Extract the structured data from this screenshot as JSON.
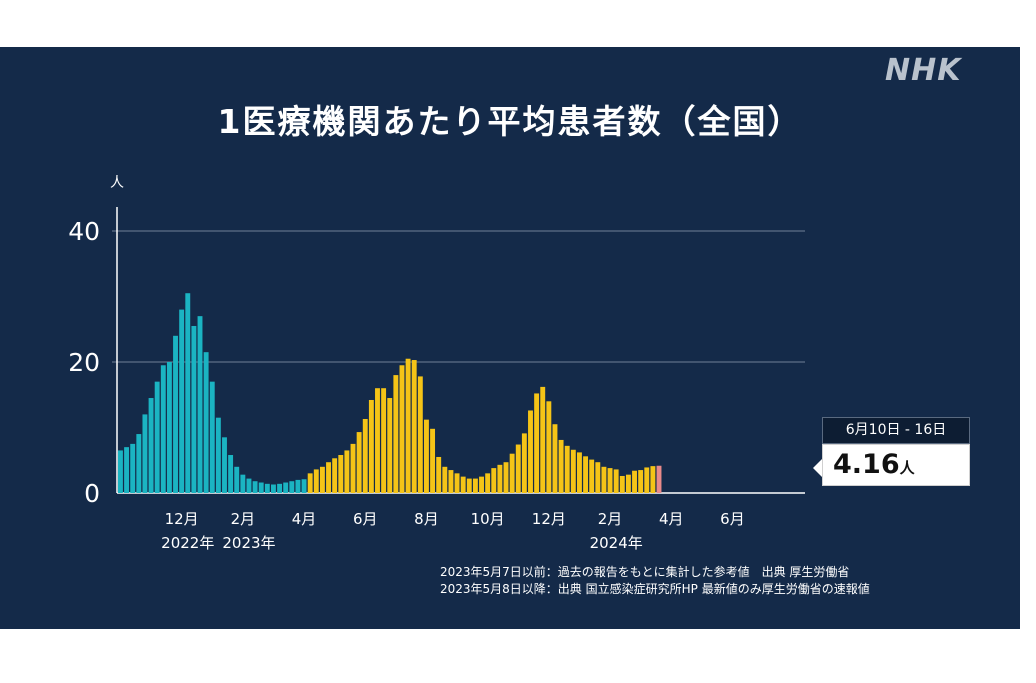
{
  "logo": "NHK",
  "colors": {
    "background": "#142a49",
    "before_2023_05_08": "#1bb4c2",
    "after_2023_05_08": "#f5c417",
    "latest": "#e98a8a",
    "grid": "#5d6f87"
  },
  "chart_data": {
    "type": "bar",
    "title": "1医療機関あたり平均患者数（全国）",
    "ylabel": "人",
    "ylim": [
      0,
      42
    ],
    "yticks": [
      0,
      20,
      40
    ],
    "grid": true,
    "series": [
      {
        "role": "before_2023_05_08",
        "values": [
          6.5,
          7,
          7.5,
          9,
          12,
          14.5,
          17,
          19.5,
          20,
          24,
          28,
          30.5,
          25.5,
          27,
          21.5,
          17,
          11.5,
          8.5,
          5.8,
          4,
          2.8,
          2.2,
          1.8,
          1.6,
          1.4,
          1.3,
          1.4,
          1.6,
          1.8,
          2.0,
          2.1
        ]
      },
      {
        "role": "after_2023_05_08",
        "values": [
          3,
          3.6,
          4,
          4.7,
          5.3,
          5.8,
          6.5,
          7.5,
          9.3,
          11.3,
          14.2,
          16,
          16,
          14.5,
          18,
          19.5,
          20.5,
          20.3,
          17.8,
          11.2,
          9.8,
          5.5,
          4,
          3.5,
          3,
          2.5,
          2.2,
          2.2,
          2.5,
          3,
          3.8,
          4.3,
          4.7,
          6,
          7.4,
          9.1,
          12.6,
          15.2,
          16.2,
          14,
          10.5,
          8.1,
          7.2,
          6.6,
          6.2,
          5.6,
          5.1,
          4.7,
          4,
          3.8,
          3.6,
          2.6,
          2.8,
          3.4,
          3.5,
          3.9,
          4.1
        ]
      },
      {
        "role": "latest",
        "values": [
          4.16
        ]
      }
    ],
    "x_ticks": [
      {
        "label": "12月",
        "index": 10
      },
      {
        "label": "2月",
        "index": 20
      },
      {
        "label": "4月",
        "index": 30
      },
      {
        "label": "6月",
        "index": 40
      },
      {
        "label": "8月",
        "index": 50
      },
      {
        "label": "10月",
        "index": 60
      },
      {
        "label": "12月",
        "index": 70
      },
      {
        "label": "2月",
        "index": 80
      },
      {
        "label": "4月",
        "index": 90
      },
      {
        "label": "6月",
        "index": 100
      }
    ],
    "year_labels": [
      {
        "label": "2022年",
        "index": 11
      },
      {
        "label": "2023年",
        "index": 21
      },
      {
        "label": "2024年",
        "index": 81
      }
    ],
    "callout": {
      "period": "6月10日 - 16日",
      "value": "4.16",
      "unit": "人"
    },
    "notes": [
      "2023年5月7日以前：過去の報告をもとに集計した参考値　出典 厚生労働省",
      "2023年5月8日以降：出典 国立感染症研究所HP 最新値のみ厚生労働省の速報値"
    ]
  }
}
